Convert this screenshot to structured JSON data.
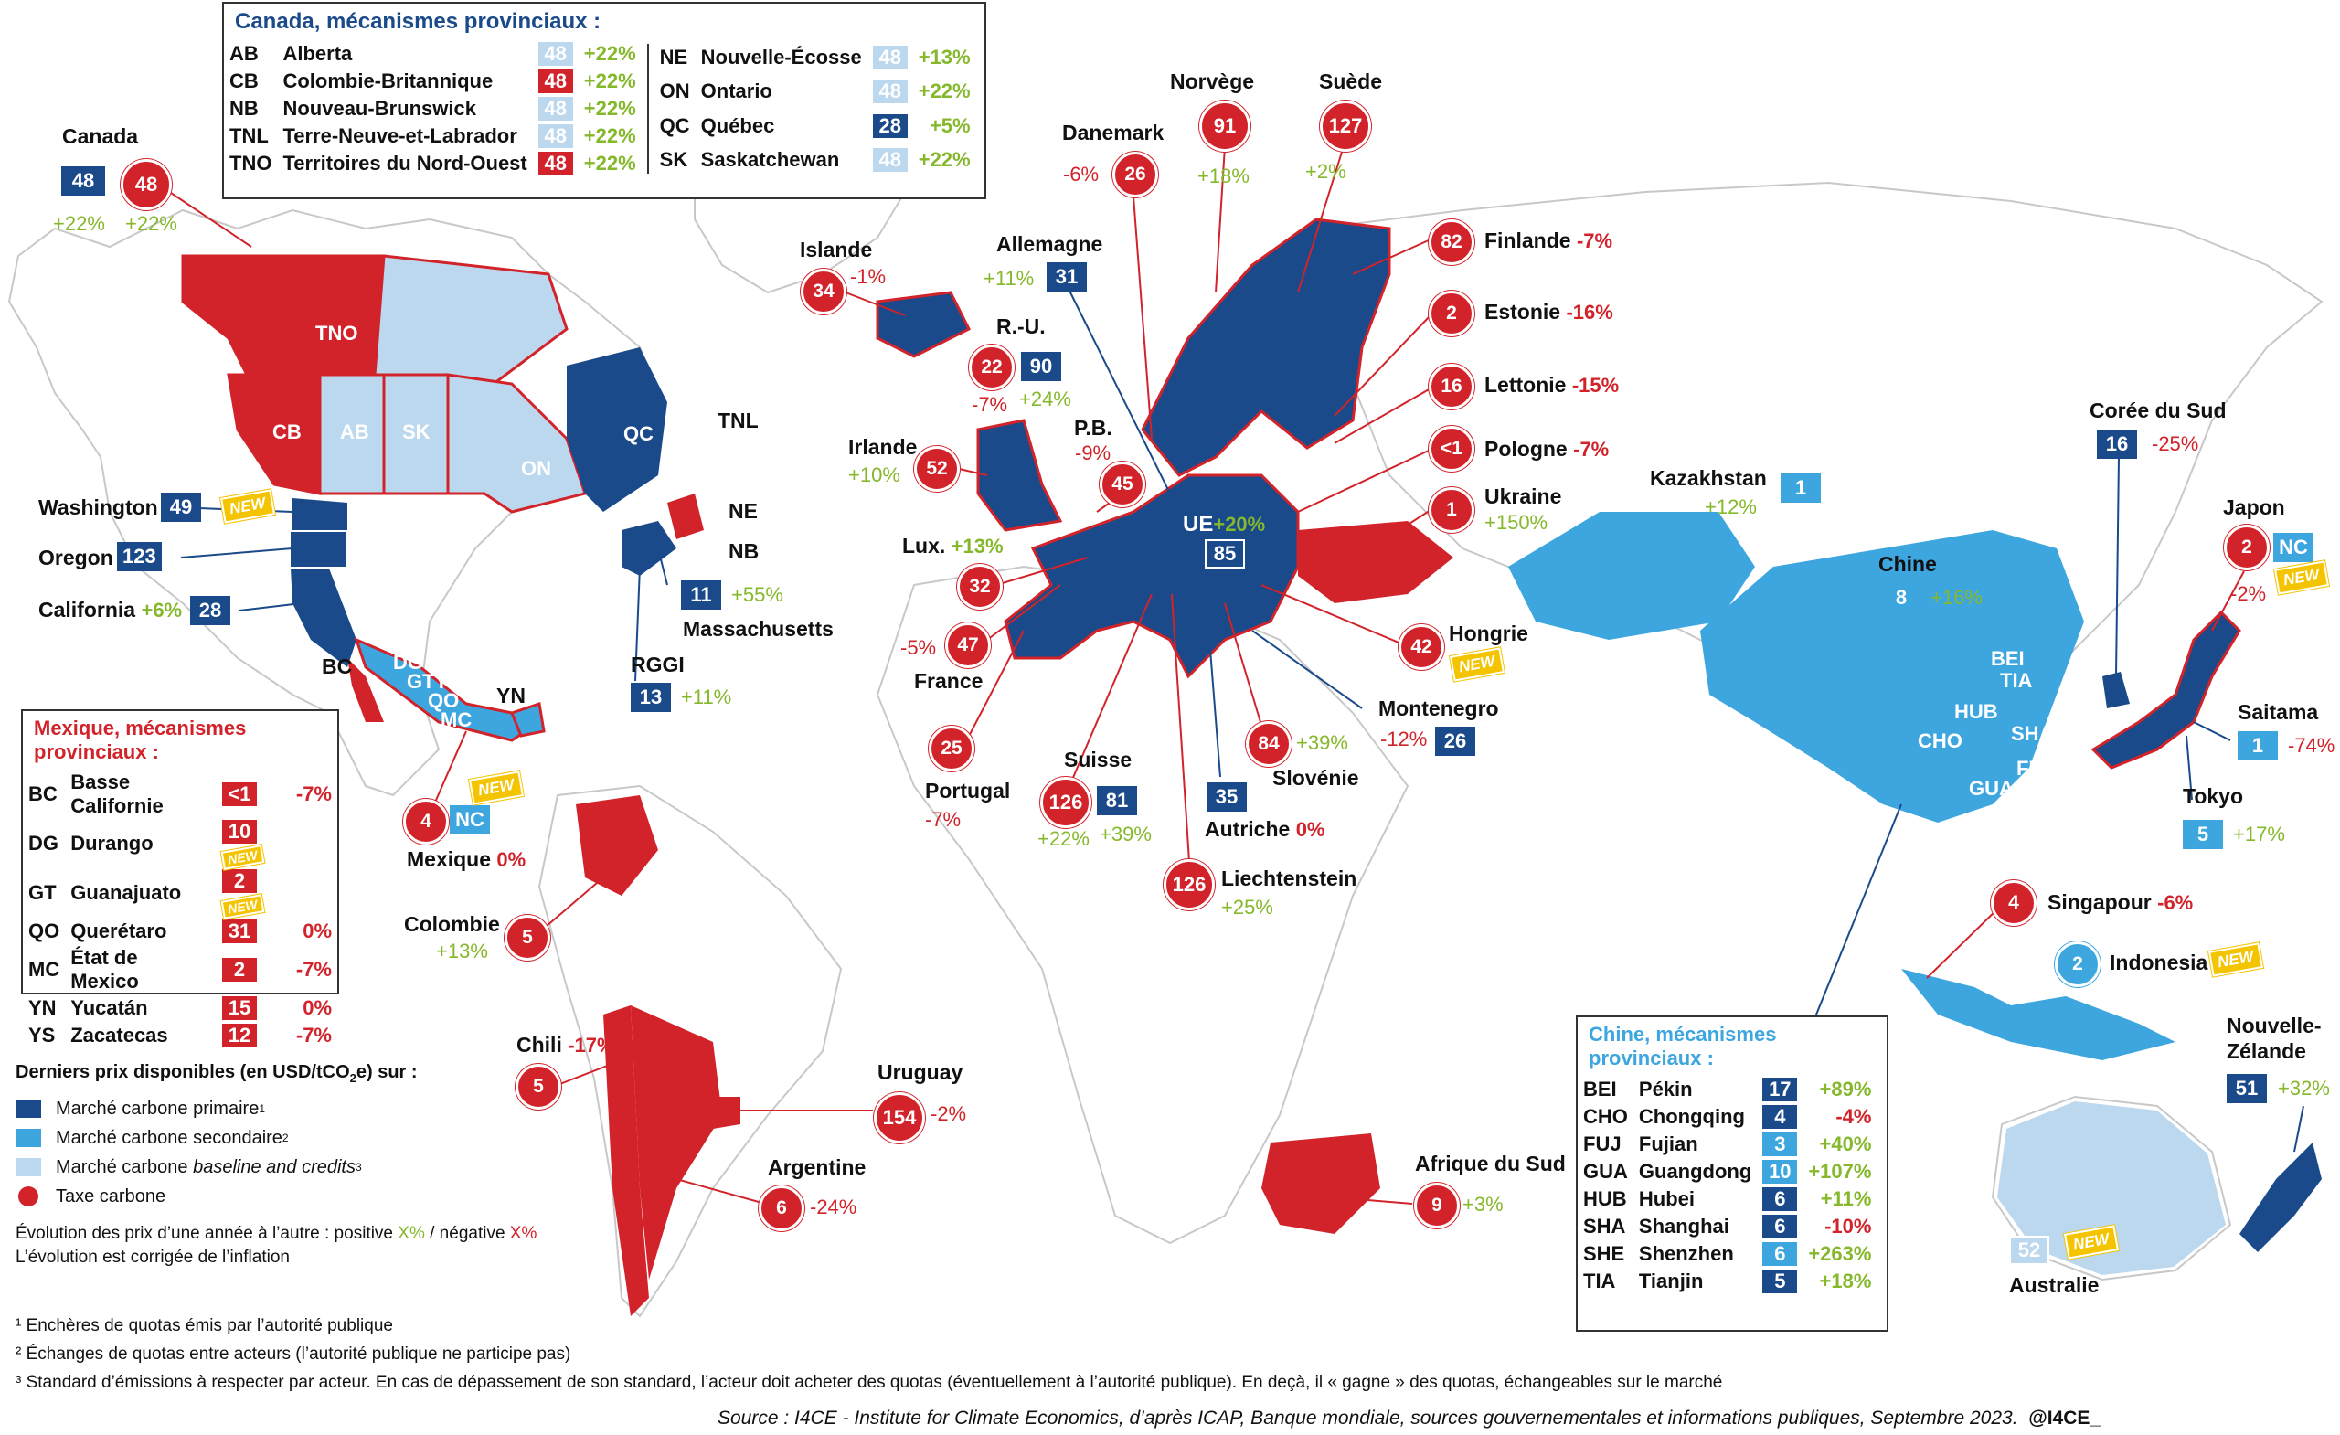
{
  "colors": {
    "primary": "#1a4a8a",
    "secondary": "#3ea6df",
    "baseline": "#bcd8ef",
    "tax": "#d2232a",
    "positive": "#86b82c",
    "new_badge": "#f5c400"
  },
  "new_label": "NEW",
  "canada_panel": {
    "title": "Canada, mécanismes provinciaux :",
    "rows": [
      {
        "code": "AB",
        "name": "Alberta",
        "value": "48",
        "type": "baseline",
        "change": "+22%"
      },
      {
        "code": "CB",
        "name": "Colombie-Britannique",
        "value": "48",
        "type": "tax",
        "change": "+22%"
      },
      {
        "code": "NB",
        "name": "Nouveau-Brunswick",
        "value": "48",
        "type": "baseline",
        "change": "+22%"
      },
      {
        "code": "TNL",
        "name": "Terre-Neuve-et-Labrador",
        "value": "48",
        "type": "baseline",
        "change": "+22%"
      },
      {
        "code": "TNO",
        "name": "Territoires du Nord-Ouest",
        "value": "48",
        "type": "tax",
        "change": "+22%"
      },
      {
        "code": "NE",
        "name": "Nouvelle-Écosse",
        "value": "48",
        "type": "baseline",
        "change": "+13%"
      },
      {
        "code": "ON",
        "name": "Ontario",
        "value": "48",
        "type": "baseline",
        "change": "+22%"
      },
      {
        "code": "QC",
        "name": "Québec",
        "value": "28",
        "type": "primary",
        "change": "+5%"
      },
      {
        "code": "SK",
        "name": "Saskatchewan",
        "value": "48",
        "type": "baseline",
        "change": "+22%"
      }
    ]
  },
  "mexico_panel": {
    "title": "Mexique, mécanismes provinciaux :",
    "rows": [
      {
        "code": "BC",
        "name": "Basse Californie",
        "value": "<1",
        "change": "-7%",
        "new": false
      },
      {
        "code": "DG",
        "name": "Durango",
        "value": "10",
        "change": "",
        "new": true
      },
      {
        "code": "GT",
        "name": "Guanajuato",
        "value": "2",
        "change": "",
        "new": true
      },
      {
        "code": "QO",
        "name": "Querétaro",
        "value": "31",
        "change": "0%",
        "new": false
      },
      {
        "code": "MC",
        "name": "État de Mexico",
        "value": "2",
        "change": "-7%",
        "new": false
      },
      {
        "code": "YN",
        "name": "Yucatán",
        "value": "15",
        "change": "0%",
        "new": false
      },
      {
        "code": "YS",
        "name": "Zacatecas",
        "value": "12",
        "change": "-7%",
        "new": false
      }
    ]
  },
  "china_panel": {
    "title": "Chine, mécanismes provinciaux :",
    "rows": [
      {
        "code": "BEI",
        "name": "Pékin",
        "value": "17",
        "type": "primary",
        "change": "+89%"
      },
      {
        "code": "CHO",
        "name": "Chongqing",
        "value": "4",
        "type": "primary",
        "change": "-4%"
      },
      {
        "code": "FUJ",
        "name": "Fujian",
        "value": "3",
        "type": "secondary",
        "change": "+40%"
      },
      {
        "code": "GUA",
        "name": "Guangdong",
        "value": "10",
        "type": "secondary",
        "change": "+107%"
      },
      {
        "code": "HUB",
        "name": "Hubei",
        "value": "6",
        "type": "primary",
        "change": "+11%"
      },
      {
        "code": "SHA",
        "name": "Shanghai",
        "value": "6",
        "type": "primary",
        "change": "-10%"
      },
      {
        "code": "SHE",
        "name": "Shenzhen",
        "value": "6",
        "type": "secondary",
        "change": "+263%"
      },
      {
        "code": "TIA",
        "name": "Tianjin",
        "value": "5",
        "type": "primary",
        "change": "+18%"
      }
    ]
  },
  "legend": {
    "title": "Derniers prix disponibles (en USD/tCO",
    "title_sub": "2",
    "title_end": "e) sur :",
    "items": [
      {
        "label": "Marché carbone primaire",
        "sup": "1"
      },
      {
        "label": "Marché carbone secondaire",
        "sup": "2"
      },
      {
        "label": "Marché carbone",
        "label_italic": "baseline and credits",
        "sup": "3"
      },
      {
        "label": "Taxe carbone",
        "sup": ""
      }
    ],
    "evolution_prefix": "Évolution des prix d’une année à l’autre : positive ",
    "evolution_pos": "X%",
    "evolution_mid": "  / négative ",
    "evolution_neg": "X%",
    "inflation": "L’évolution est corrigée de l’inflation"
  },
  "footnotes": [
    "¹ Enchères de quotas émis par l’autorité publique",
    "² Échanges de quotas entre acteurs (l’autorité publique ne participe pas)",
    "³ Standard d’émissions à respecter par acteur. En cas de dépassement de son standard, l’acteur doit acheter des quotas (éventuellement à l’autorité publique). En deçà, il « gagne » des quotas, échangeables sur le marché"
  ],
  "source": "Source : I4CE - Institute for Climate Economics, d’après ICAP, Banque mondiale, sources gouvernementales et informations publiques, Septembre 2023.",
  "credit": "@I4CE_",
  "map_region_labels": {
    "TNO": "TNO",
    "CB": "CB",
    "AB": "AB",
    "SK": "SK",
    "ON": "ON",
    "QC": "QC",
    "BEI": "BEI",
    "TIA": "TIA",
    "HUB": "HUB",
    "SHA": "SHA",
    "CHO": "CHO",
    "FUJ": "FUJ",
    "GUA": "GUA",
    "SHE": "SHE",
    "DG": "DG",
    "GTYS": "GTYS",
    "QO": "QO",
    "MC": "MC"
  },
  "labels": {
    "canada": "Canada",
    "canada_v1": "48",
    "canada_c1": "+22%",
    "canada_v2": "48",
    "canada_c2": "+22%",
    "washington": "Washington",
    "washington_v": "49",
    "oregon": "Oregon",
    "oregon_v": "123",
    "california": "California",
    "california_c": "+6%",
    "california_v": "28",
    "bc": "BC",
    "yn": "YN",
    "tnl": "TNL",
    "ne": "NE",
    "nb": "NB",
    "mass": "Massachusetts",
    "mass_v": "11",
    "mass_c": "+55%",
    "rggi": "RGGI",
    "rggi_v": "13",
    "rggi_c": "+11%",
    "mexique": "Mexique",
    "mexique_c": "0%",
    "mexique_v": "4",
    "mexique_nc": "NC",
    "colombie": "Colombie",
    "colombie_c": "+13%",
    "colombie_v": "5",
    "chili": "Chili",
    "chili_c": "-17%",
    "chili_v": "5",
    "uruguay": "Uruguay",
    "uruguay_v": "154",
    "uruguay_c": "-2%",
    "argentine": "Argentine",
    "argentine_v": "6",
    "argentine_c": "-24%",
    "islande": "Islande",
    "islande_v": "34",
    "islande_c": "-1%",
    "irlande": "Irlande",
    "irlande_c": "+10%",
    "irlande_v": "52",
    "ru": "R.-U.",
    "ru_v1": "22",
    "ru_v2": "90",
    "ru_c1": "-7%",
    "ru_c2": "+24%",
    "pb": "P.B.",
    "pb_c": "-9%",
    "pb_v": "45",
    "lux": "Lux.",
    "lux_c": "+13%",
    "lux_v": "32",
    "france": "France",
    "france_c": "-5%",
    "france_v": "47",
    "portugal": "Portugal",
    "portugal_c": "-7%",
    "portugal_v": "25",
    "suisse": "Suisse",
    "suisse_v1": "126",
    "suisse_v2": "81",
    "suisse_c1": "+22%",
    "suisse_c2": "+39%",
    "liechtenstein": "Liechtenstein",
    "liechtenstein_v": "126",
    "liechtenstein_c": "+25%",
    "autriche": "Autriche",
    "autriche_c": "0%",
    "autriche_v": "35",
    "slovenie": "Slovénie",
    "slovenie_v": "84",
    "slovenie_c": "+39%",
    "montenegro": "Montenegro",
    "montenegro_c": "-12%",
    "montenegro_v": "26",
    "hongrie": "Hongrie",
    "hongrie_v": "42",
    "allemagne": "Allemagne",
    "allemagne_c": "+11%",
    "allemagne_v": "31",
    "danemark": "Danemark",
    "danemark_c": "-6%",
    "danemark_v": "26",
    "norvege": "Norvège",
    "norvege_v": "91",
    "norvege_c": "+18%",
    "suede": "Suède",
    "suede_v": "127",
    "suede_c": "+2%",
    "finlande": "Finlande",
    "finlande_v": "82",
    "finlande_c": "-7%",
    "estonie": "Estonie",
    "estonie_v": "2",
    "estonie_c": "-16%",
    "lettonie": "Lettonie",
    "lettonie_v": "16",
    "lettonie_c": "-15%",
    "pologne": "Pologne",
    "pologne_v": "<1",
    "pologne_c": "-7%",
    "ukraine": "Ukraine",
    "ukraine_v": "1",
    "ukraine_c": "+150%",
    "ue": "UE",
    "ue_c": "+20%",
    "ue_v": "85",
    "kazakhstan": "Kazakhstan",
    "kazakhstan_v": "1",
    "kazakhstan_c": "+12%",
    "chine": "Chine",
    "chine_v": "8",
    "chine_c": "+16%",
    "coree": "Corée du Sud",
    "coree_v": "16",
    "coree_c": "-25%",
    "japon": "Japon",
    "japon_v": "2",
    "japon_nc": "NC",
    "japon_c": "-2%",
    "saitama": "Saitama",
    "saitama_v": "1",
    "saitama_c": "-74%",
    "tokyo": "Tokyo",
    "tokyo_v": "5",
    "tokyo_c": "+17%",
    "singapour": "Singapour",
    "singapour_v": "4",
    "singapour_c": "-6%",
    "indonesia": "Indonesia",
    "indonesia_v": "2",
    "nz": "Nouvelle-",
    "nz2": "Zélande",
    "nz_v": "51",
    "nz_c": "+32%",
    "australie": "Australie",
    "australie_v": "52",
    "afrique": "Afrique du Sud",
    "afrique_v": "9",
    "afrique_c": "+3%"
  }
}
